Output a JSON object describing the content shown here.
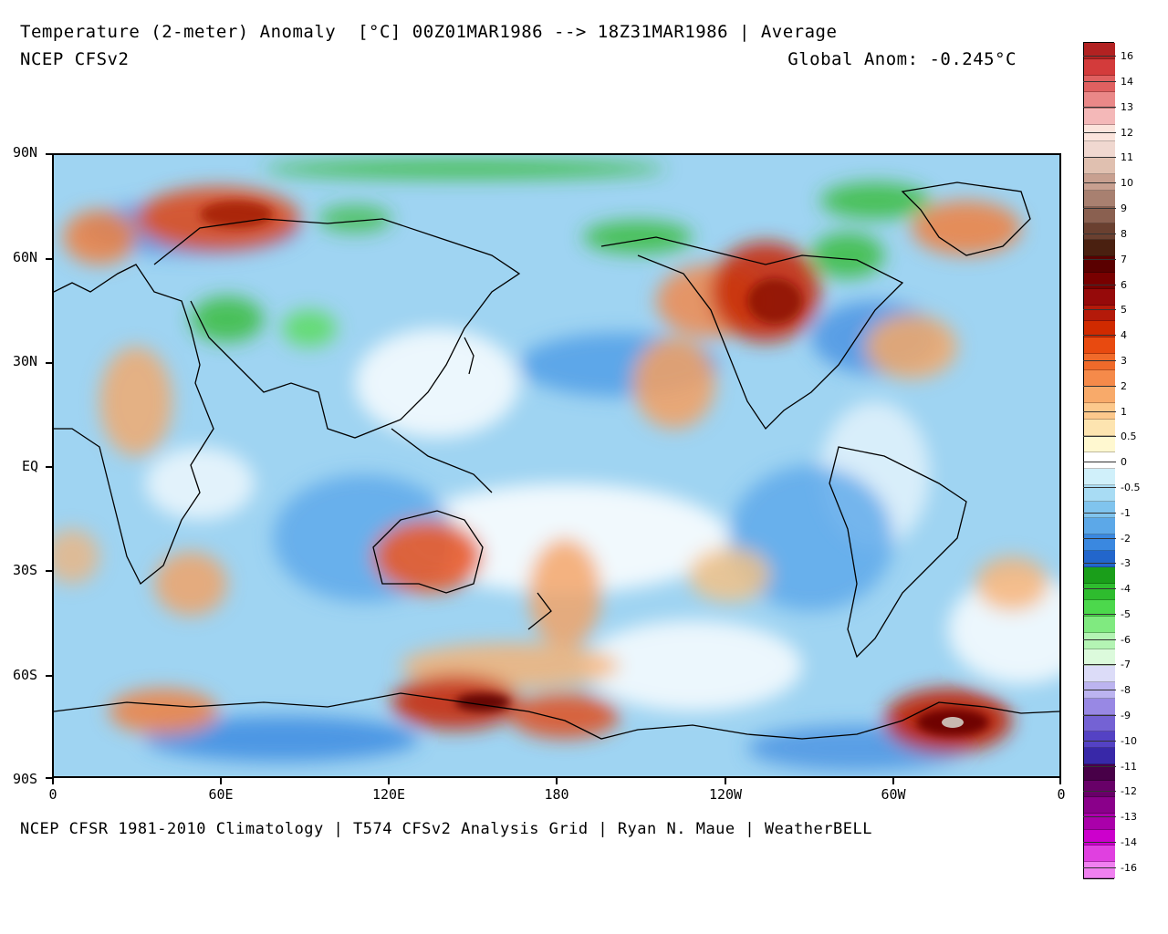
{
  "header": {
    "title": "Temperature (2-meter) Anomaly  [°C] 00Z01MAR1986 --> 18Z31MAR1986 | Average",
    "subtitle": "NCEP CFSv2",
    "global_anom": "Global Anom: -0.245°C"
  },
  "footer": {
    "credit": "NCEP CFSR 1981-2010 Climatology | T574 CFSv2 Analysis Grid | Ryan N. Maue | WeatherBELL"
  },
  "axes": {
    "lat_labels": [
      "90N",
      "60N",
      "30N",
      "EQ",
      "30S",
      "60S",
      "90S"
    ],
    "lon_labels": [
      "0",
      "60E",
      "120E",
      "180",
      "120W",
      "60W",
      "0"
    ]
  },
  "colorbar": {
    "labels": [
      "16",
      "14",
      "13",
      "12",
      "11",
      "10",
      "9",
      "8",
      "7",
      "6",
      "5",
      "4",
      "3",
      "2",
      "1",
      "0.5",
      "0",
      "-0.5",
      "-1",
      "-2",
      "-3",
      "-4",
      "-5",
      "-6",
      "-7",
      "-8",
      "-9",
      "-10",
      "-11",
      "-12",
      "-13",
      "-14",
      "-16"
    ],
    "colors": [
      "#b22222",
      "#cc3333",
      "#dd5555",
      "#e88080",
      "#f2b0b0",
      "#f8d8d0",
      "#fce8e0",
      "#e8c8b8",
      "#d8b0a0",
      "#c09080",
      "#a07060",
      "#885040",
      "#6a3020",
      "#500a0a",
      "#6a0000",
      "#880000",
      "#a01010",
      "#c02000",
      "#dd3300",
      "#ee5522",
      "#f08040",
      "#f5a060",
      "#f8c080",
      "#fce0a0",
      "#fff8c0",
      "#ffffff",
      "#ffffff",
      "#c8eef8",
      "#a0d8f0",
      "#78c0ee",
      "#50a0e8",
      "#3080e0",
      "#2060c8",
      "#229922",
      "#33bb33",
      "#55dd55",
      "#88ee88",
      "#b8f4b8",
      "#e0fae0",
      "#d8d8f8",
      "#b8b0f0",
      "#9080e0",
      "#7060d0",
      "#5040c0",
      "#3020a8",
      "#500050",
      "#700070",
      "#900090",
      "#b000b0",
      "#d000d0",
      "#e040e0",
      "#f080f0"
    ],
    "palette_cb": [
      "#b22222",
      "#d33b3b",
      "#e06060",
      "#ea8888",
      "#f4b8b8",
      "#fbe4dc",
      "#f0d8d0",
      "#e0c0b0",
      "#c8a090",
      "#a88070",
      "#8a6050",
      "#6a4030",
      "#4a2010",
      "#5a0000",
      "#780000",
      "#960a0a",
      "#b41a0a",
      "#d02a00",
      "#e84a10",
      "#f06a2a",
      "#f58a4a",
      "#f8aa6a",
      "#fcc88c",
      "#fde4b0",
      "#fff8d0",
      "#ffffff",
      "#d0f0fa",
      "#a8dcf4",
      "#80c4ee",
      "#5ca8e8",
      "#3a88e0",
      "#2266cc",
      "#1a9e1a",
      "#2ebc2e",
      "#4cd84c",
      "#80ea80",
      "#b4f4b4",
      "#dcfadc",
      "#dcdcf8",
      "#bcb4f0",
      "#9888e4",
      "#7462d4",
      "#5442c4",
      "#3828a8",
      "#480048",
      "#680068",
      "#8a008a",
      "#aa00aa",
      "#cc00cc",
      "#e040e0",
      "#f080f0"
    ]
  },
  "map": {
    "ocean_color": "#a8dcf4"
  }
}
